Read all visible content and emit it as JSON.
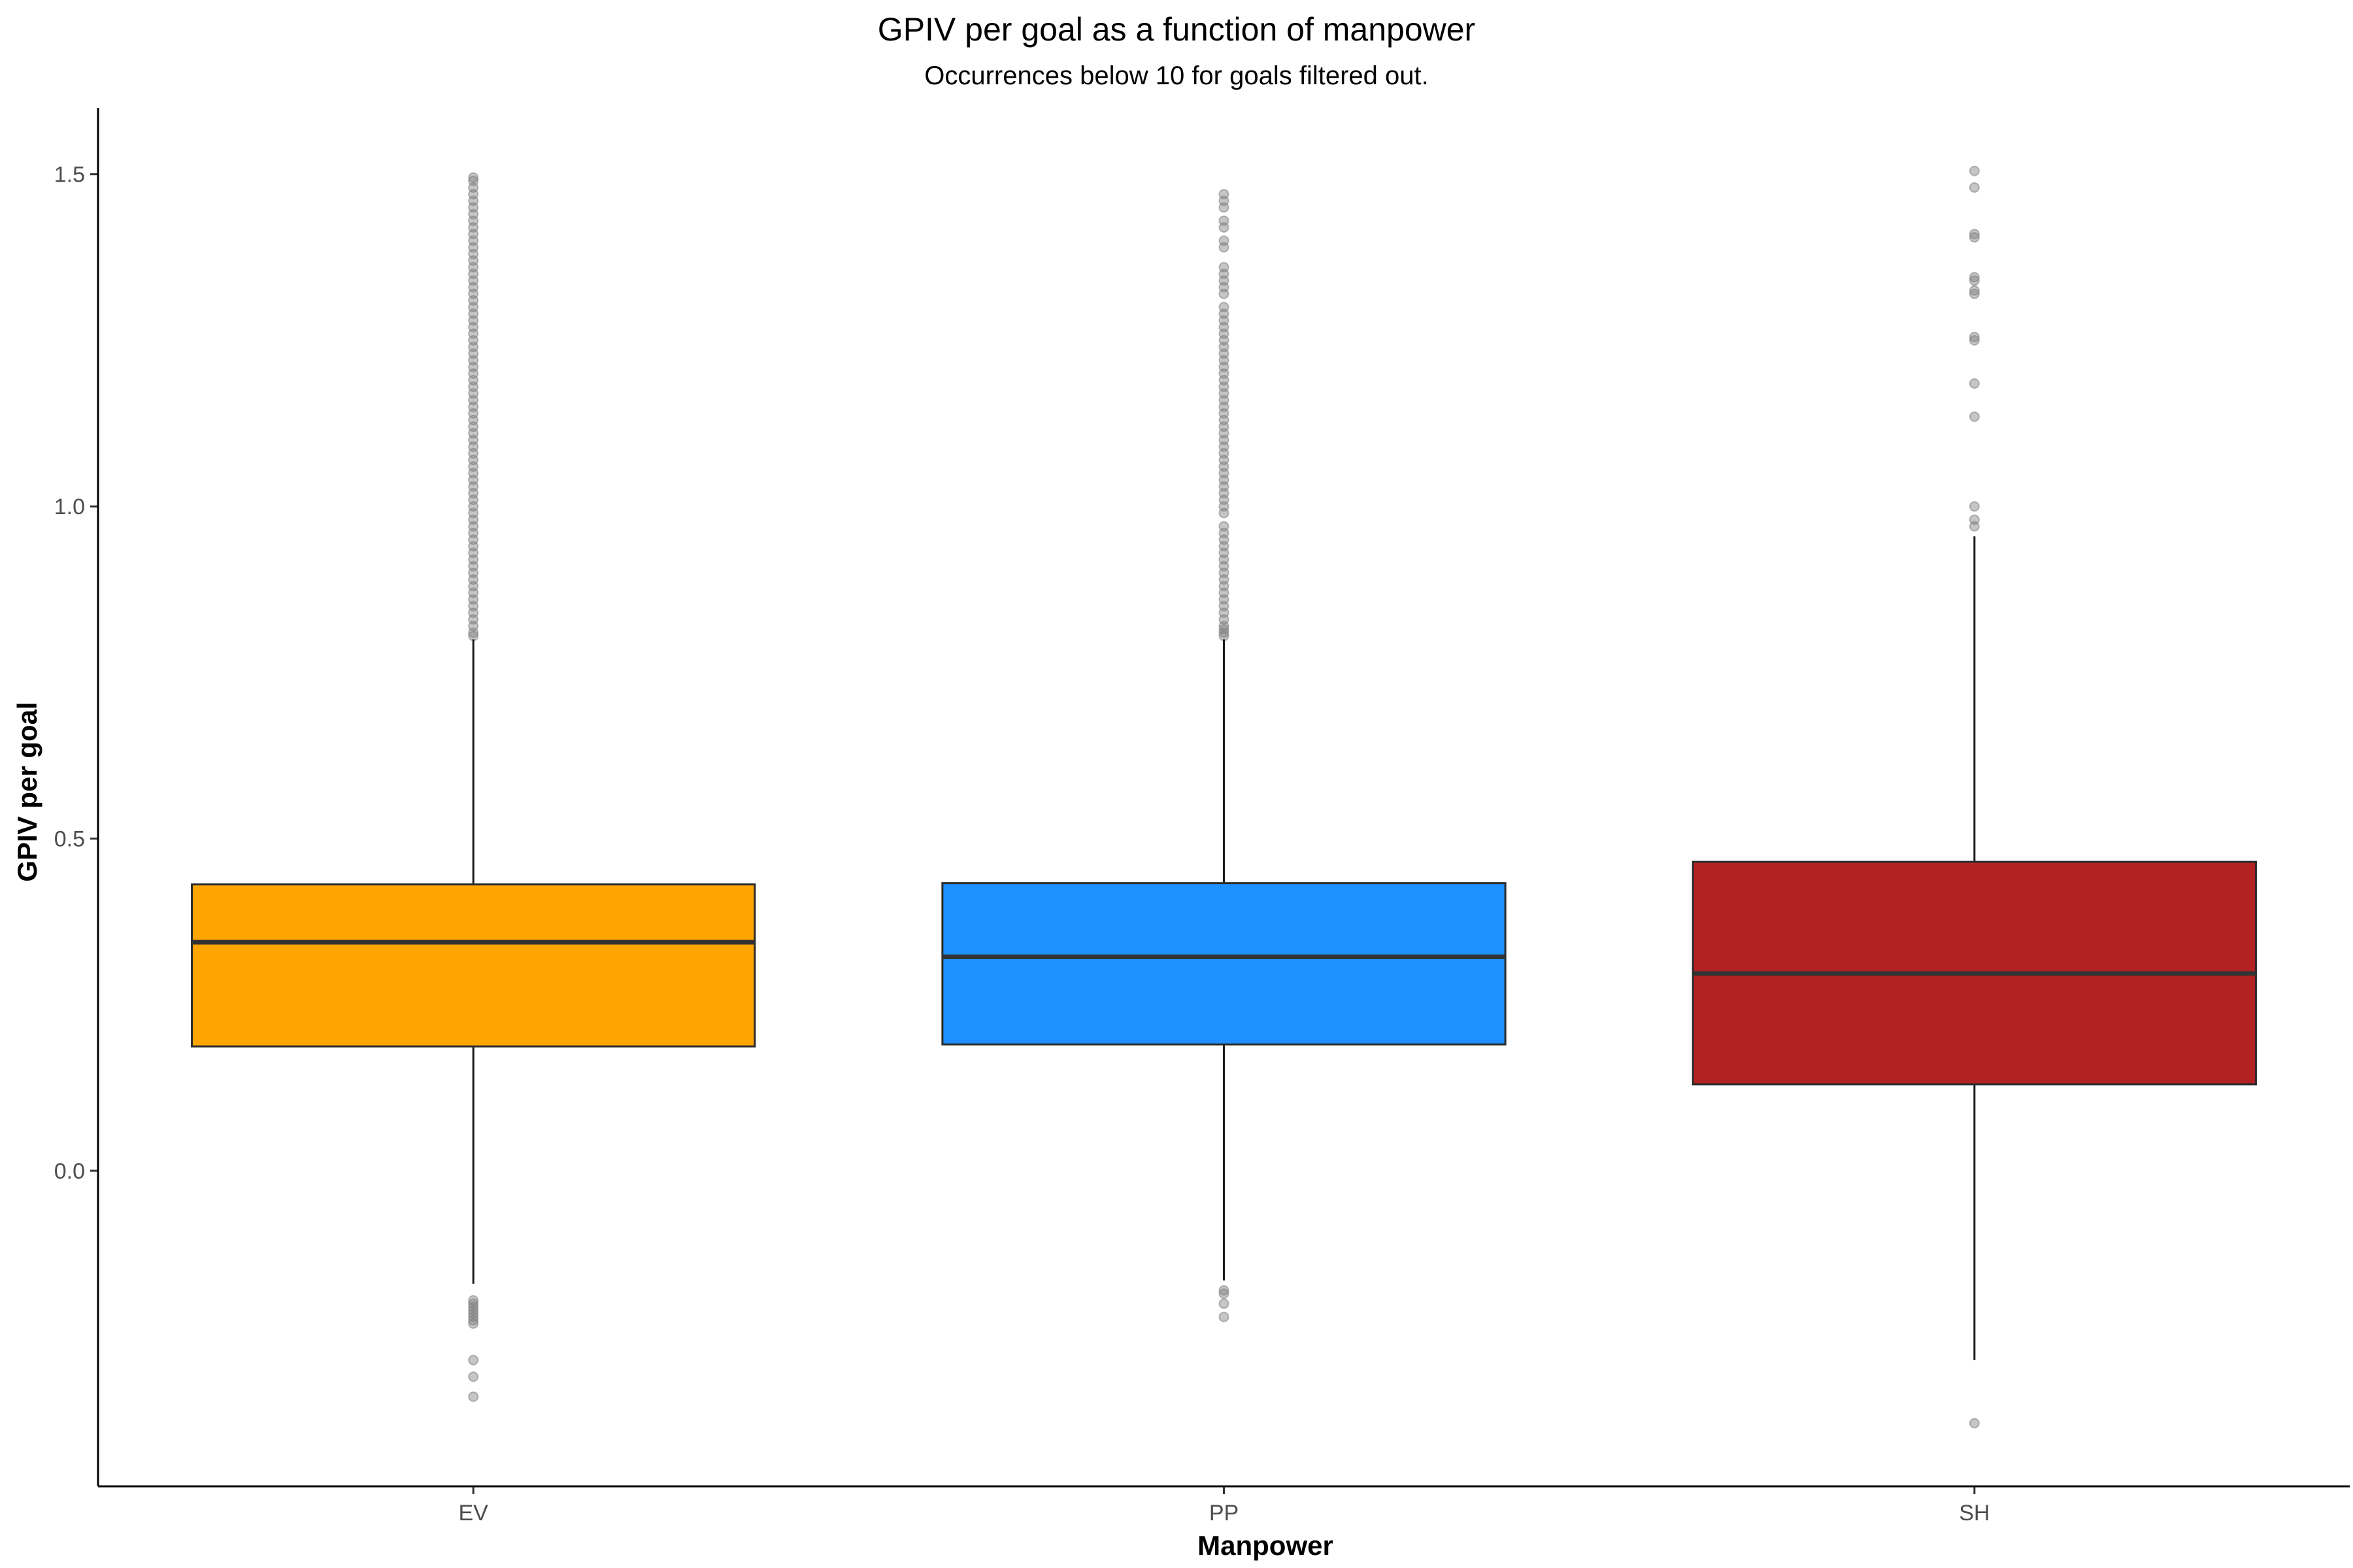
{
  "chart_data": {
    "type": "boxplot",
    "title": "GPIV per goal as a function of manpower",
    "subtitle": "Occurrences below 10 for goals filtered out.",
    "xlabel": "Manpower",
    "ylabel": "GPIV per goal",
    "ylim": [
      -0.475,
      1.6
    ],
    "yticks": [
      0.0,
      0.5,
      1.0,
      1.5
    ],
    "yticklabels": [
      "0.0",
      "0.5",
      "1.0",
      "1.5"
    ],
    "grid": false,
    "categories": [
      "EV",
      "PP",
      "SH"
    ],
    "boxes": [
      {
        "category": "EV",
        "color": "#FFA500",
        "whisker_low": -0.17,
        "q1": 0.187,
        "median": 0.344,
        "q3": 0.431,
        "whisker_high": 0.8,
        "outliers": [
          -0.195,
          -0.2,
          -0.205,
          -0.21,
          -0.215,
          -0.22,
          -0.225,
          -0.23,
          -0.285,
          -0.31,
          -0.34,
          0.805,
          0.81,
          0.82,
          0.83,
          0.84,
          0.85,
          0.86,
          0.87,
          0.88,
          0.89,
          0.9,
          0.91,
          0.92,
          0.93,
          0.94,
          0.95,
          0.96,
          0.97,
          0.98,
          0.99,
          1.0,
          1.01,
          1.02,
          1.03,
          1.04,
          1.05,
          1.06,
          1.07,
          1.08,
          1.09,
          1.1,
          1.11,
          1.12,
          1.13,
          1.14,
          1.15,
          1.16,
          1.17,
          1.18,
          1.19,
          1.2,
          1.21,
          1.22,
          1.23,
          1.24,
          1.25,
          1.26,
          1.27,
          1.28,
          1.29,
          1.3,
          1.31,
          1.32,
          1.33,
          1.34,
          1.35,
          1.36,
          1.37,
          1.38,
          1.39,
          1.4,
          1.41,
          1.42,
          1.43,
          1.44,
          1.45,
          1.46,
          1.47,
          1.48,
          1.49,
          1.495
        ]
      },
      {
        "category": "PP",
        "color": "#1E90FF",
        "whisker_low": -0.165,
        "q1": 0.19,
        "median": 0.322,
        "q3": 0.433,
        "whisker_high": 0.8,
        "outliers": [
          -0.18,
          -0.185,
          -0.2,
          -0.22,
          0.805,
          0.81,
          0.815,
          0.82,
          0.83,
          0.84,
          0.85,
          0.86,
          0.87,
          0.88,
          0.89,
          0.9,
          0.91,
          0.92,
          0.93,
          0.94,
          0.95,
          0.96,
          0.97,
          0.99,
          1.0,
          1.01,
          1.02,
          1.03,
          1.04,
          1.05,
          1.06,
          1.07,
          1.08,
          1.09,
          1.1,
          1.11,
          1.12,
          1.13,
          1.14,
          1.15,
          1.16,
          1.17,
          1.18,
          1.19,
          1.2,
          1.21,
          1.22,
          1.23,
          1.24,
          1.25,
          1.26,
          1.27,
          1.28,
          1.29,
          1.3,
          1.32,
          1.33,
          1.34,
          1.35,
          1.36,
          1.39,
          1.4,
          1.42,
          1.43,
          1.45,
          1.46,
          1.47
        ]
      },
      {
        "category": "SH",
        "color": "#B22222",
        "whisker_low": -0.285,
        "q1": 0.13,
        "median": 0.297,
        "q3": 0.465,
        "whisker_high": 0.955,
        "outliers": [
          -0.38,
          0.97,
          0.98,
          1.0,
          1.135,
          1.185,
          1.25,
          1.255,
          1.32,
          1.325,
          1.34,
          1.345,
          1.405,
          1.41,
          1.48,
          1.505
        ]
      }
    ]
  }
}
